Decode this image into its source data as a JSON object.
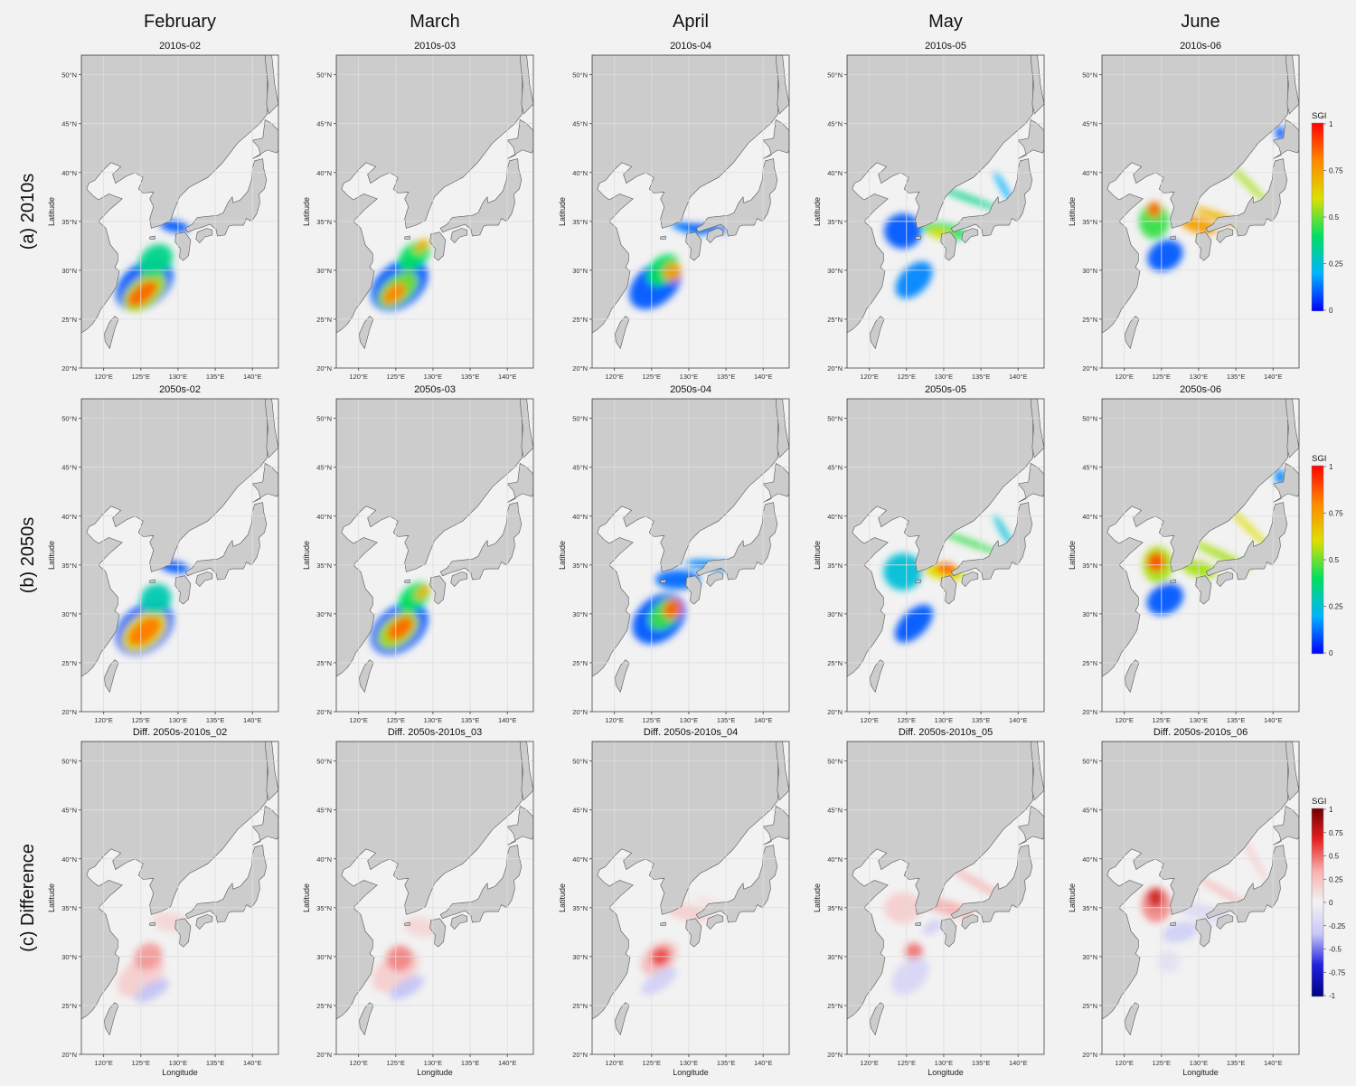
{
  "columns": [
    "February",
    "March",
    "April",
    "May",
    "June"
  ],
  "rows": [
    "(a) 2010s",
    "(b) 2050s",
    "(c) Difference"
  ],
  "panel_titles": [
    [
      "2010s-02",
      "2010s-03",
      "2010s-04",
      "2010s-05",
      "2010s-06"
    ],
    [
      "2050s-02",
      "2050s-03",
      "2050s-04",
      "2050s-05",
      "2050s-06"
    ],
    [
      "Diff. 2050s-2010s_02",
      "Diff. 2050s-2010s_03",
      "Diff. 2050s-2010s_04",
      "Diff. 2050s-2010s_05",
      "Diff. 2050s-2010s_06"
    ]
  ],
  "axes": {
    "ylabel": "Latitude",
    "xlabel": "Longitude",
    "lat_ticks": [
      "20°N",
      "25°N",
      "30°N",
      "35°N",
      "40°N",
      "45°N",
      "50°N"
    ],
    "lon_ticks": [
      "120°E",
      "125°E",
      "130°E",
      "135°E",
      "140°E"
    ],
    "lat_values": [
      20,
      25,
      30,
      35,
      40,
      45,
      50
    ],
    "lon_values": [
      120,
      125,
      130,
      135,
      140
    ],
    "lat_range": [
      20,
      52
    ],
    "lon_range": [
      117,
      143.5
    ]
  },
  "legends": [
    {
      "title": "SGI",
      "type": "sequential",
      "ticks": [
        "1",
        "0.75",
        "0.5",
        "0.25",
        "0"
      ]
    },
    {
      "title": "SGI",
      "type": "sequential",
      "ticks": [
        "1",
        "0.75",
        "0.5",
        "0.25",
        "0"
      ]
    },
    {
      "title": "SGI",
      "type": "diverging",
      "ticks": [
        "1",
        "0.75",
        "0.5",
        "0.25",
        "0",
        "-0.25",
        "-0.5",
        "-0.75",
        "-1"
      ]
    }
  ],
  "colors": {
    "land": "#cccccc",
    "sea": "#f2f2f2",
    "grid": "#dedede",
    "seq": [
      "#0000ff",
      "#00b4ff",
      "#00e060",
      "#dde000",
      "#ff8800",
      "#ff0000"
    ],
    "div": [
      "#000080",
      "#2020e0",
      "#c8c8f8",
      "#f2f2f2",
      "#f8b0b0",
      "#e82020",
      "#700000"
    ]
  }
}
